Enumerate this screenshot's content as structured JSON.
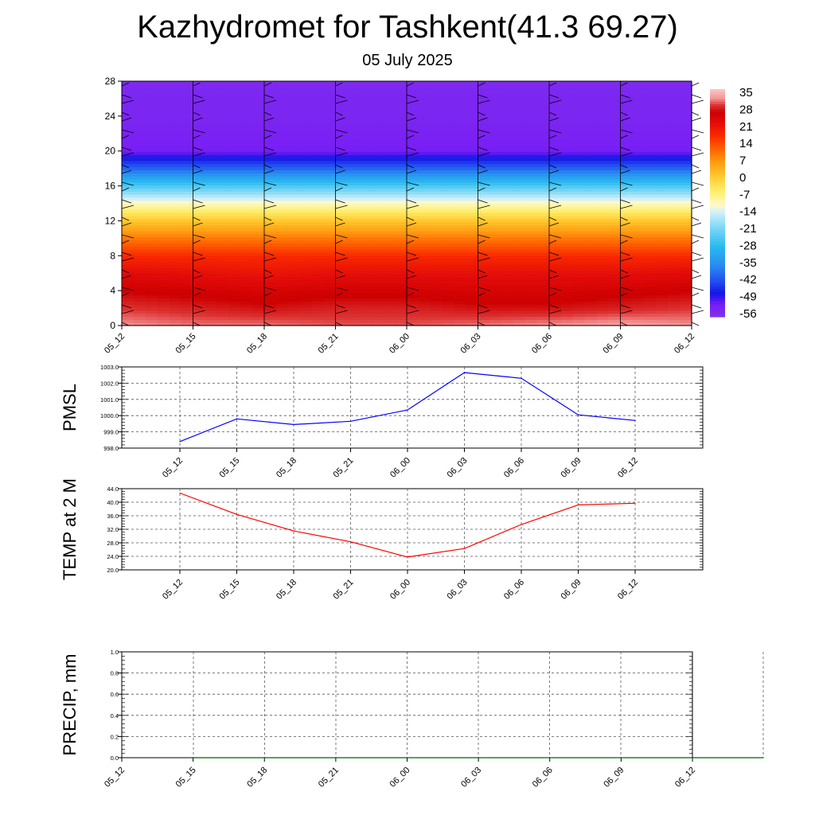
{
  "header": {
    "title": "Kazhydromet for Tashkent(41.3 69.27)",
    "subtitle": "05 July 2025"
  },
  "colors": {
    "pmsl_line": "#0000ff",
    "temp_line": "#ff0000",
    "precip_line": "#006400",
    "grid": "#555555"
  },
  "chart_data": [
    {
      "type": "heatmap",
      "name": "vertical-profile",
      "x_ticks": [
        "05_12",
        "05_15",
        "05_18",
        "05_21",
        "06_00",
        "06_03",
        "06_06",
        "06_09",
        "06_12"
      ],
      "y_ticks": [
        "0",
        "4",
        "8",
        "12",
        "16",
        "20",
        "24",
        "28"
      ],
      "ylim": [
        0,
        28
      ],
      "value_field": "temperature",
      "colorbar_labels": [
        "35",
        "28",
        "21",
        "14",
        "7",
        "0",
        "-7",
        "-14",
        "-21",
        "-28",
        "-35",
        "-42",
        "-49",
        "-56"
      ],
      "colorbar_range": [
        -60,
        38
      ],
      "profile_levels": [
        0,
        2,
        4,
        6,
        8,
        10,
        12,
        14,
        16,
        18,
        20,
        22,
        24,
        26,
        28
      ],
      "profile_values": [
        [
          34,
          33,
          33,
          32,
          32,
          33,
          34,
          35,
          34
        ],
        [
          31,
          30,
          29,
          30,
          30,
          29,
          29,
          30,
          31
        ],
        [
          28,
          27,
          26,
          27,
          27,
          26,
          26,
          27,
          28
        ],
        [
          24,
          23,
          22,
          23,
          23,
          23,
          23,
          23,
          24
        ],
        [
          18,
          18,
          18,
          18,
          18,
          18,
          18,
          18,
          18
        ],
        [
          10,
          10,
          10,
          10,
          10,
          10,
          10,
          10,
          10
        ],
        [
          1,
          1,
          1,
          1,
          1,
          1,
          1,
          1,
          1
        ],
        [
          -11,
          -11,
          -11,
          -11,
          -11,
          -11,
          -11,
          -11,
          -11
        ],
        [
          -26,
          -26,
          -26,
          -26,
          -26,
          -26,
          -26,
          -26,
          -26
        ],
        [
          -42,
          -42,
          -42,
          -42,
          -42,
          -42,
          -42,
          -42,
          -42
        ],
        [
          -55,
          -55,
          -55,
          -55,
          -55,
          -55,
          -55,
          -55,
          -55
        ],
        [
          -56,
          -56,
          -56,
          -56,
          -56,
          -56,
          -56,
          -56,
          -56
        ],
        [
          -57,
          -57,
          -57,
          -57,
          -57,
          -57,
          -57,
          -57,
          -57
        ],
        [
          -57,
          -57,
          -57,
          -57,
          -57,
          -57,
          -57,
          -57,
          -57
        ],
        [
          -58,
          -58,
          -58,
          -58,
          -58,
          -58,
          -58,
          -58,
          -58
        ]
      ],
      "wind_barb_color": "#000000"
    },
    {
      "type": "line",
      "name": "pmsl",
      "ylabel": "PMSL",
      "categories": [
        "05_12",
        "05_15",
        "05_18",
        "05_21",
        "06_00",
        "06_03",
        "06_06",
        "06_09",
        "06_12"
      ],
      "series": [
        {
          "values": [
            998.4,
            999.8,
            999.45,
            999.65,
            1000.35,
            1002.65,
            1002.3,
            1000.05,
            999.7
          ]
        }
      ],
      "ylim": [
        998.0,
        1003.0
      ],
      "y_ticks": [
        "998.0",
        "999.0",
        "1000.0",
        "1001.0",
        "1002.0",
        "1003.0"
      ],
      "grid": true
    },
    {
      "type": "line",
      "name": "temp",
      "ylabel": "TEMP at 2 M",
      "categories": [
        "05_12",
        "05_15",
        "05_18",
        "05_21",
        "06_00",
        "06_03",
        "06_06",
        "06_09",
        "06_12"
      ],
      "series": [
        {
          "values": [
            42.7,
            36.4,
            31.5,
            28.3,
            23.8,
            26.3,
            33.4,
            39.2,
            39.7
          ]
        }
      ],
      "ylim": [
        20.0,
        44.0
      ],
      "y_ticks": [
        "20.0",
        "24.0",
        "28.0",
        "32.0",
        "36.0",
        "40.0",
        "44.0"
      ],
      "grid": true
    },
    {
      "type": "line",
      "name": "precip",
      "ylabel": "PRECIP, mm",
      "categories": [
        "05_12",
        "05_15",
        "05_18",
        "05_21",
        "06_00",
        "06_03",
        "06_06",
        "06_09",
        "06_12"
      ],
      "series": [
        {
          "values": [
            0,
            0,
            0,
            0,
            0,
            0,
            0,
            0,
            0
          ]
        }
      ],
      "ylim": [
        0.0,
        1.0
      ],
      "y_ticks": [
        "0.0",
        "0.2",
        "0.4",
        "0.6",
        "0.8",
        "1.0"
      ],
      "grid": true
    }
  ]
}
